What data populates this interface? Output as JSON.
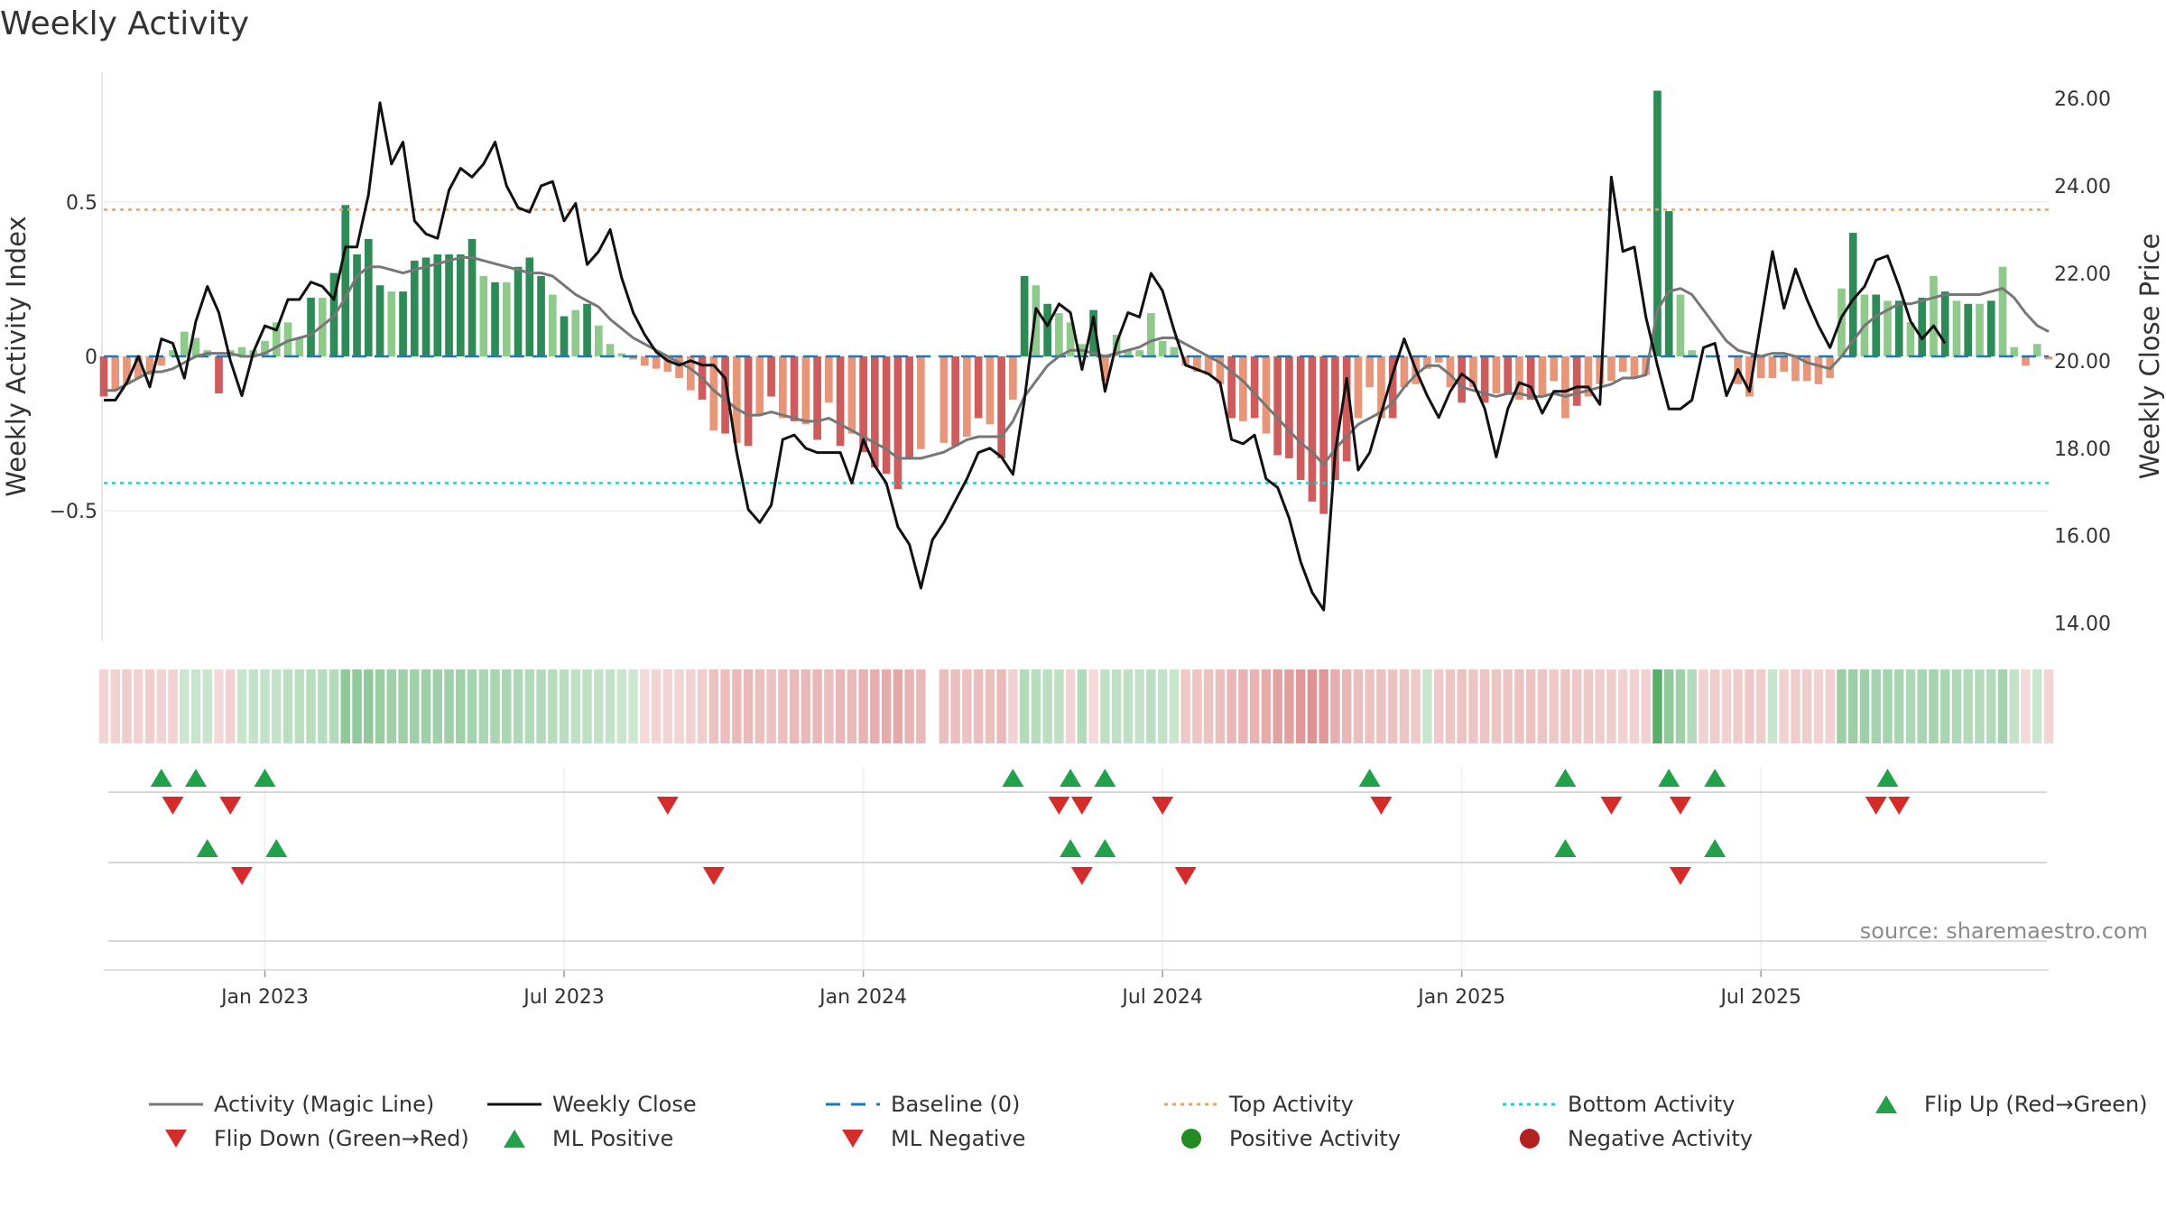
{
  "chart_data": {
    "type": "bar",
    "title": "Weekly Activity",
    "ylabel_left": "Weekly Activity Index",
    "ylabel_right": "Weekly Close Price",
    "source": "source: sharemaestro.com",
    "left_ticks": [
      {
        "value": 0.5,
        "label": "0.5"
      },
      {
        "value": 0,
        "label": "0"
      },
      {
        "value": -0.5,
        "label": "−0.5"
      }
    ],
    "right_ticks": [
      {
        "value": 26,
        "label": "26.00"
      },
      {
        "value": 24,
        "label": "24.00"
      },
      {
        "value": 22,
        "label": "22.00"
      },
      {
        "value": 20,
        "label": "20.00"
      },
      {
        "value": 18,
        "label": "18.00"
      },
      {
        "value": 16,
        "label": "16.00"
      },
      {
        "value": 14,
        "label": "14.00"
      }
    ],
    "ylim_left": [
      -0.92,
      0.92
    ],
    "ylim_right": [
      13.6,
      26.6
    ],
    "top_activity": 0.475,
    "bottom_activity": -0.41,
    "baseline": 0,
    "x_ticks": [
      "Jan 2023",
      "Jul 2023",
      "Jan 2024",
      "Jul 2024",
      "Jan 2025",
      "Jul 2025"
    ],
    "x_tick_weeks": [
      14,
      40,
      66,
      92,
      118,
      144
    ],
    "activity": [
      -0.13,
      -0.11,
      -0.09,
      -0.07,
      -0.06,
      -0.03,
      0.02,
      0.08,
      0.06,
      0.02,
      -0.12,
      0.02,
      0.03,
      0.02,
      0.05,
      0.11,
      0.11,
      0.06,
      0.19,
      0.19,
      0.27,
      0.49,
      0.33,
      0.38,
      0.23,
      0.21,
      0.21,
      0.31,
      0.32,
      0.33,
      0.33,
      0.33,
      0.38,
      0.26,
      0.24,
      0.24,
      0.29,
      0.32,
      0.26,
      0.2,
      0.13,
      0.15,
      0.17,
      0.1,
      0.04,
      0.01,
      -0.01,
      -0.03,
      -0.04,
      -0.05,
      -0.07,
      -0.11,
      -0.14,
      -0.24,
      -0.25,
      -0.28,
      -0.29,
      -0.19,
      -0.13,
      -0.2,
      -0.21,
      -0.22,
      -0.27,
      -0.15,
      -0.29,
      -0.25,
      -0.31,
      -0.36,
      -0.38,
      -0.43,
      -0.33,
      -0.3,
      0,
      -0.28,
      -0.29,
      -0.26,
      -0.2,
      -0.22,
      -0.33,
      -0.14,
      0.26,
      0.23,
      0.17,
      0.14,
      0.11,
      0.04,
      0.15,
      -0.08,
      0.07,
      0.02,
      0.02,
      0.14,
      0.05,
      0.03,
      -0.03,
      -0.05,
      -0.06,
      -0.09,
      -0.2,
      -0.21,
      -0.2,
      -0.25,
      -0.32,
      -0.33,
      -0.4,
      -0.47,
      -0.51,
      -0.4,
      -0.34,
      -0.2,
      -0.1,
      -0.2,
      -0.2,
      -0.1,
      -0.09,
      -0.04,
      -0.02,
      -0.1,
      -0.15,
      -0.1,
      -0.15,
      -0.12,
      -0.12,
      -0.14,
      -0.14,
      -0.13,
      -0.08,
      -0.2,
      -0.16,
      -0.13,
      -0.09,
      -0.08,
      -0.05,
      -0.07,
      -0.06,
      0.86,
      0.47,
      0.2,
      0.02,
      0,
      0,
      0,
      -0.09,
      -0.13,
      -0.07,
      -0.07,
      -0.05,
      -0.08,
      -0.08,
      -0.09,
      -0.07,
      0.22,
      0.4,
      0.2,
      0.2,
      0.18,
      0.18,
      0.11,
      0.19,
      0.26,
      0.21,
      0.18,
      0.17,
      0.17,
      0.18,
      0.29,
      0.03,
      -0.03,
      0.04,
      -0.01
    ],
    "magic_line": [
      -0.11,
      -0.11,
      -0.09,
      -0.07,
      -0.05,
      -0.05,
      -0.04,
      -0.02,
      0,
      0.01,
      0.01,
      0.01,
      0,
      0,
      0.01,
      0.03,
      0.05,
      0.06,
      0.07,
      0.1,
      0.13,
      0.19,
      0.26,
      0.29,
      0.29,
      0.28,
      0.27,
      0.28,
      0.29,
      0.3,
      0.31,
      0.32,
      0.32,
      0.31,
      0.3,
      0.29,
      0.28,
      0.27,
      0.27,
      0.26,
      0.23,
      0.2,
      0.18,
      0.16,
      0.12,
      0.09,
      0.06,
      0.04,
      0.02,
      0,
      -0.02,
      -0.04,
      -0.07,
      -0.11,
      -0.14,
      -0.17,
      -0.19,
      -0.19,
      -0.18,
      -0.19,
      -0.2,
      -0.21,
      -0.21,
      -0.2,
      -0.22,
      -0.24,
      -0.26,
      -0.28,
      -0.3,
      -0.33,
      -0.33,
      -0.33,
      -0.32,
      -0.31,
      -0.29,
      -0.27,
      -0.26,
      -0.26,
      -0.26,
      -0.21,
      -0.13,
      -0.08,
      -0.03,
      0,
      0.02,
      0.02,
      0.01,
      0,
      0.01,
      0.02,
      0.03,
      0.05,
      0.06,
      0.06,
      0.04,
      0.02,
      0,
      -0.02,
      -0.05,
      -0.08,
      -0.12,
      -0.16,
      -0.2,
      -0.24,
      -0.28,
      -0.31,
      -0.35,
      -0.3,
      -0.26,
      -0.22,
      -0.2,
      -0.18,
      -0.15,
      -0.1,
      -0.06,
      -0.03,
      -0.03,
      -0.06,
      -0.1,
      -0.11,
      -0.12,
      -0.13,
      -0.12,
      -0.12,
      -0.13,
      -0.13,
      -0.12,
      -0.13,
      -0.12,
      -0.11,
      -0.1,
      -0.09,
      -0.07,
      -0.07,
      -0.06,
      0.15,
      0.21,
      0.22,
      0.2,
      0.15,
      0.1,
      0.05,
      0.02,
      0.01,
      0,
      0.01,
      0.01,
      0,
      -0.02,
      -0.03,
      -0.04,
      0,
      0.05,
      0.1,
      0.13,
      0.15,
      0.17,
      0.17,
      0.18,
      0.19,
      0.2,
      0.2,
      0.2,
      0.2,
      0.21,
      0.22,
      0.19,
      0.14,
      0.1,
      0.08
    ],
    "weekly_close": [
      19.1,
      19.1,
      19.5,
      20.1,
      19.4,
      20.5,
      20.4,
      19.6,
      20.9,
      21.7,
      21.1,
      20.0,
      19.2,
      20.2,
      20.8,
      20.7,
      21.4,
      21.4,
      21.8,
      21.7,
      21.4,
      22.6,
      22.6,
      23.8,
      25.9,
      24.5,
      25.0,
      23.2,
      22.9,
      22.8,
      23.9,
      24.4,
      24.2,
      24.5,
      25.0,
      24.0,
      23.5,
      23.4,
      24.0,
      24.1,
      23.2,
      23.6,
      22.2,
      22.5,
      23.0,
      21.9,
      21.1,
      20.6,
      20.2,
      20.0,
      19.9,
      20.0,
      19.9,
      19.9,
      19.6,
      17.9,
      16.6,
      16.3,
      16.7,
      18.2,
      18.3,
      18.0,
      17.9,
      17.9,
      17.9,
      17.2,
      18.2,
      17.6,
      17.2,
      16.2,
      15.8,
      14.8,
      15.9,
      16.3,
      16.8,
      17.3,
      17.9,
      18.0,
      17.8,
      17.4,
      19.1,
      21.2,
      20.8,
      21.3,
      21.1,
      19.8,
      21.0,
      19.3,
      20.4,
      21.1,
      21.0,
      22.0,
      21.6,
      20.7,
      19.9,
      19.8,
      19.7,
      19.5,
      18.2,
      18.1,
      18.3,
      17.3,
      17.1,
      16.4,
      15.4,
      14.7,
      14.3,
      17.9,
      19.6,
      17.5,
      17.9,
      18.8,
      19.7,
      20.5,
      19.8,
      19.2,
      18.7,
      19.3,
      19.7,
      19.5,
      18.9,
      17.8,
      18.9,
      19.5,
      19.4,
      18.8,
      19.3,
      19.3,
      19.4,
      19.4,
      19.0,
      24.2,
      22.5,
      22.6,
      21.0,
      19.9,
      18.9,
      18.9,
      19.1,
      20.3,
      20.4,
      19.2,
      19.8,
      19.3,
      20.9,
      22.5,
      21.2,
      22.1,
      21.4,
      20.8,
      20.3,
      21.0,
      21.4,
      21.7,
      22.3,
      22.4,
      21.7,
      20.9,
      20.5,
      20.8,
      20.4
    ],
    "strip_intensity": [
      -0.18,
      -0.2,
      -0.22,
      -0.2,
      -0.22,
      -0.18,
      -0.2,
      0.18,
      0.2,
      0.2,
      -0.16,
      -0.2,
      0.2,
      0.22,
      0.22,
      0.22,
      0.26,
      0.26,
      0.28,
      0.28,
      0.3,
      0.45,
      0.45,
      0.45,
      0.42,
      0.38,
      0.38,
      0.38,
      0.38,
      0.38,
      0.38,
      0.38,
      0.36,
      0.34,
      0.34,
      0.34,
      0.32,
      0.3,
      0.3,
      0.28,
      0.26,
      0.24,
      0.24,
      0.22,
      0.22,
      0.2,
      0.18,
      -0.16,
      -0.18,
      -0.18,
      -0.18,
      -0.2,
      -0.22,
      -0.28,
      -0.3,
      -0.32,
      -0.32,
      -0.3,
      -0.28,
      -0.3,
      -0.32,
      -0.32,
      -0.34,
      -0.3,
      -0.34,
      -0.32,
      -0.36,
      -0.38,
      -0.4,
      -0.42,
      -0.36,
      -0.34,
      null,
      -0.3,
      -0.3,
      -0.28,
      -0.3,
      -0.3,
      -0.32,
      -0.2,
      0.3,
      0.28,
      0.26,
      0.24,
      -0.18,
      0.3,
      -0.16,
      0.24,
      0.24,
      0.24,
      0.22,
      0.26,
      0.22,
      0.2,
      -0.24,
      -0.26,
      -0.28,
      -0.3,
      -0.34,
      -0.36,
      -0.36,
      -0.4,
      -0.44,
      -0.46,
      -0.5,
      -0.52,
      -0.5,
      -0.38,
      -0.34,
      -0.3,
      -0.28,
      -0.28,
      -0.28,
      -0.26,
      -0.24,
      0.2,
      -0.24,
      -0.26,
      -0.28,
      -0.26,
      -0.26,
      -0.26,
      -0.26,
      -0.28,
      -0.28,
      -0.26,
      -0.24,
      -0.26,
      -0.24,
      -0.24,
      -0.22,
      -0.22,
      -0.2,
      -0.2,
      -0.2,
      0.7,
      0.45,
      0.38,
      0.3,
      -0.2,
      -0.22,
      -0.2,
      -0.22,
      -0.24,
      -0.22,
      0.2,
      -0.2,
      -0.22,
      -0.22,
      -0.2,
      -0.2,
      0.4,
      0.4,
      0.38,
      0.36,
      0.36,
      0.34,
      0.32,
      0.34,
      0.36,
      0.34,
      0.32,
      0.3,
      0.3,
      0.3,
      0.36,
      0.22,
      -0.16,
      0.2,
      -0.18
    ],
    "flip_up_weeks": [
      5,
      8,
      14,
      79,
      84,
      87,
      110,
      127,
      136,
      140,
      155
    ],
    "flip_down_weeks": [
      6,
      11,
      49,
      83,
      85,
      92,
      111,
      131,
      137,
      154,
      156
    ],
    "ml_positive_weeks": [
      9,
      15,
      84,
      87,
      127,
      140
    ],
    "ml_negative_weeks": [
      12,
      53,
      85,
      94,
      137
    ],
    "colors": {
      "pos_dark": "#2e8b57",
      "pos_light": "#8fc98b",
      "neg_dark": "#cf5c5c",
      "neg_light": "#e8967a",
      "magic_line": "#777777",
      "close_line": "#111111",
      "baseline": "#1f77b4",
      "top_activity": "#f0a060",
      "bottom_activity": "#22cccc",
      "up_marker": "#23a04a",
      "down_marker": "#d62b2b",
      "pos_dot": "#228b22",
      "neg_dot": "#b22222"
    },
    "legend": [
      {
        "label": "Activity (Magic Line)",
        "symbol": "line",
        "color": "#777777"
      },
      {
        "label": "Weekly Close",
        "symbol": "line",
        "color": "#111111"
      },
      {
        "label": "Baseline (0)",
        "symbol": "dash",
        "color": "#1f77b4"
      },
      {
        "label": "Top Activity",
        "symbol": "dot-line",
        "color": "#f0a060"
      },
      {
        "label": "Bottom Activity",
        "symbol": "dot-line",
        "color": "#22cccc"
      },
      {
        "label": "Flip Up (Red→Green)",
        "symbol": "tri-up",
        "color": "#23a04a"
      },
      {
        "label": "Flip Down (Green→Red)",
        "symbol": "tri-down",
        "color": "#d62b2b"
      },
      {
        "label": "ML Positive",
        "symbol": "tri-up",
        "color": "#23a04a"
      },
      {
        "label": "ML Negative",
        "symbol": "tri-down",
        "color": "#d62b2b"
      },
      {
        "label": "Positive Activity",
        "symbol": "circle",
        "color": "#228b22"
      },
      {
        "label": "Negative Activity",
        "symbol": "circle",
        "color": "#b22222"
      }
    ]
  }
}
